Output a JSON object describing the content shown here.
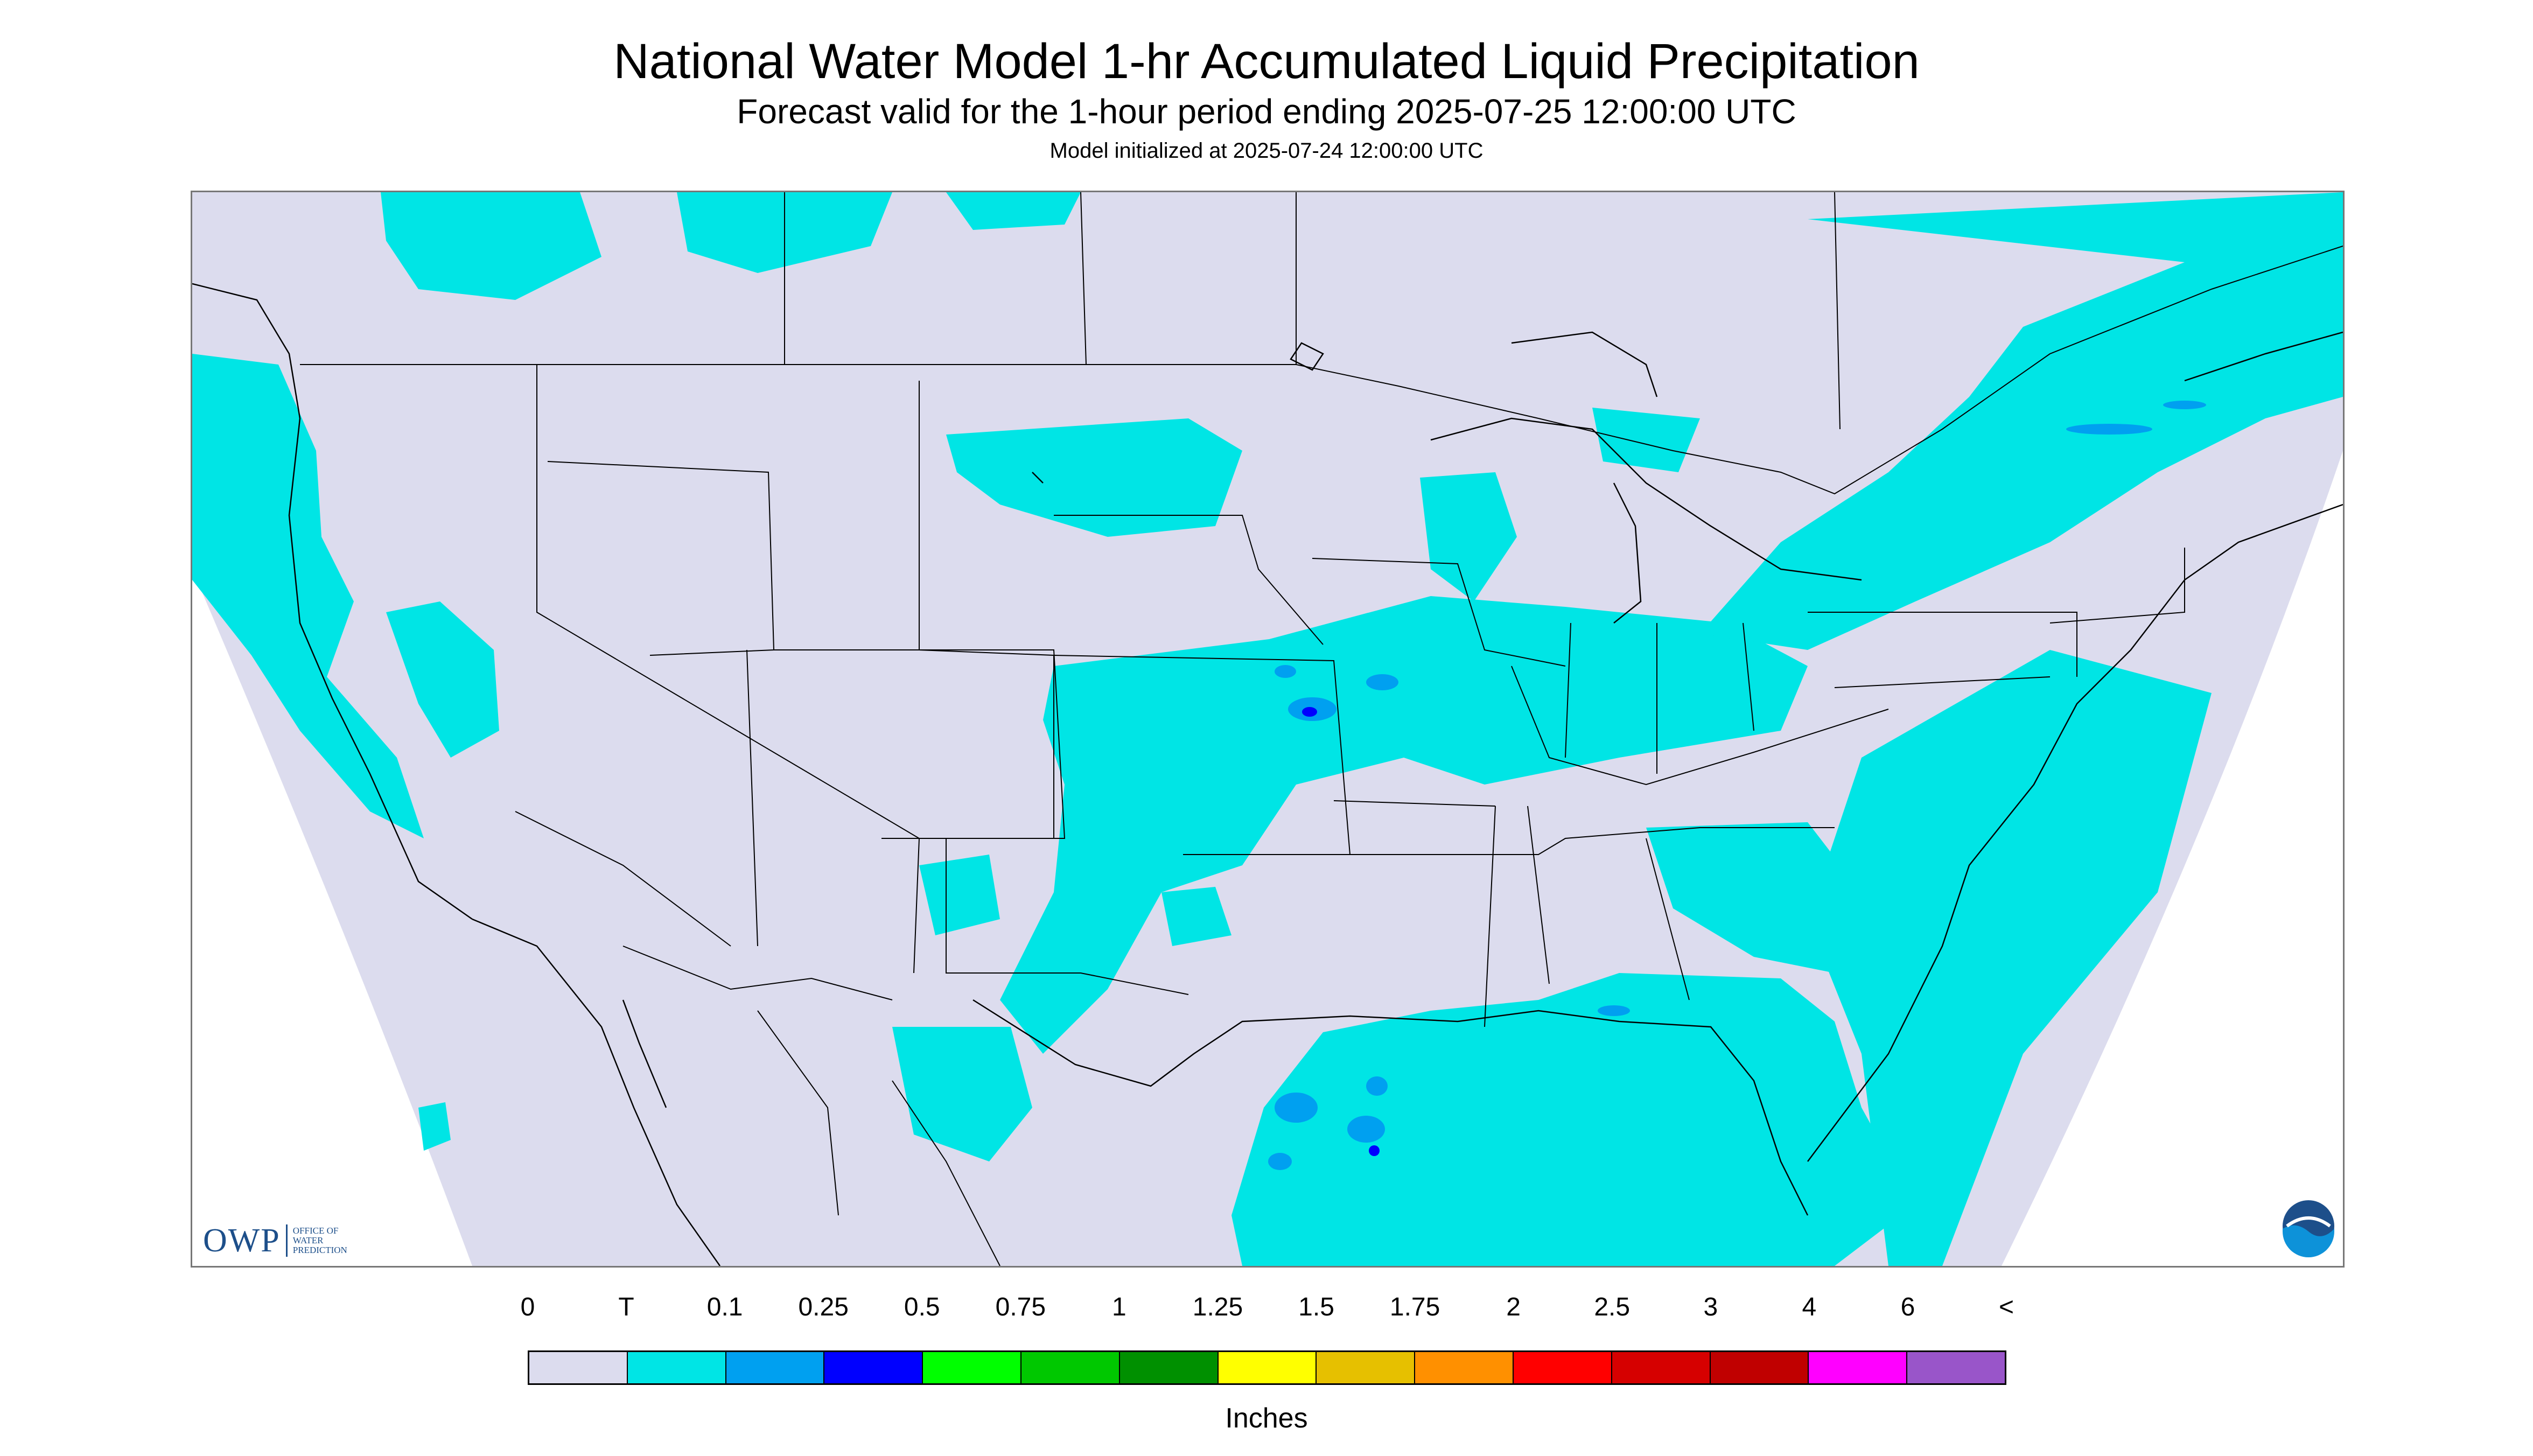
{
  "title": "National Water Model 1-hr Accumulated Liquid Precipitation",
  "subtitle": "Forecast valid for the 1-hour period ending 2025-07-25 12:00:00 UTC",
  "init_line": "Model initialized at 2025-07-24 12:00:00 UTC",
  "logos": {
    "owp_big": "OWP",
    "owp_small": [
      "OFFICE OF",
      "WATER",
      "PREDICTION"
    ],
    "noaa": "NOAA"
  },
  "colors": {
    "background": "#dcdcee",
    "trace": "#00e5e5",
    "light_blue": "#00a0f0",
    "blue": "#0000ff"
  },
  "legend": {
    "labels": [
      "0",
      "T",
      "0.1",
      "0.25",
      "0.5",
      "0.75",
      "1",
      "1.25",
      "1.5",
      "1.75",
      "2",
      "2.5",
      "3",
      "4",
      "6",
      "<"
    ],
    "colors": [
      "#dcdcee",
      "#00e5e5",
      "#00a0f0",
      "#0000ff",
      "#00ff00",
      "#00c800",
      "#009000",
      "#ffff00",
      "#e6c000",
      "#ff9000",
      "#ff0000",
      "#d60000",
      "#c00000",
      "#ff00ff",
      "#9955c9"
    ],
    "units": "Inches"
  }
}
